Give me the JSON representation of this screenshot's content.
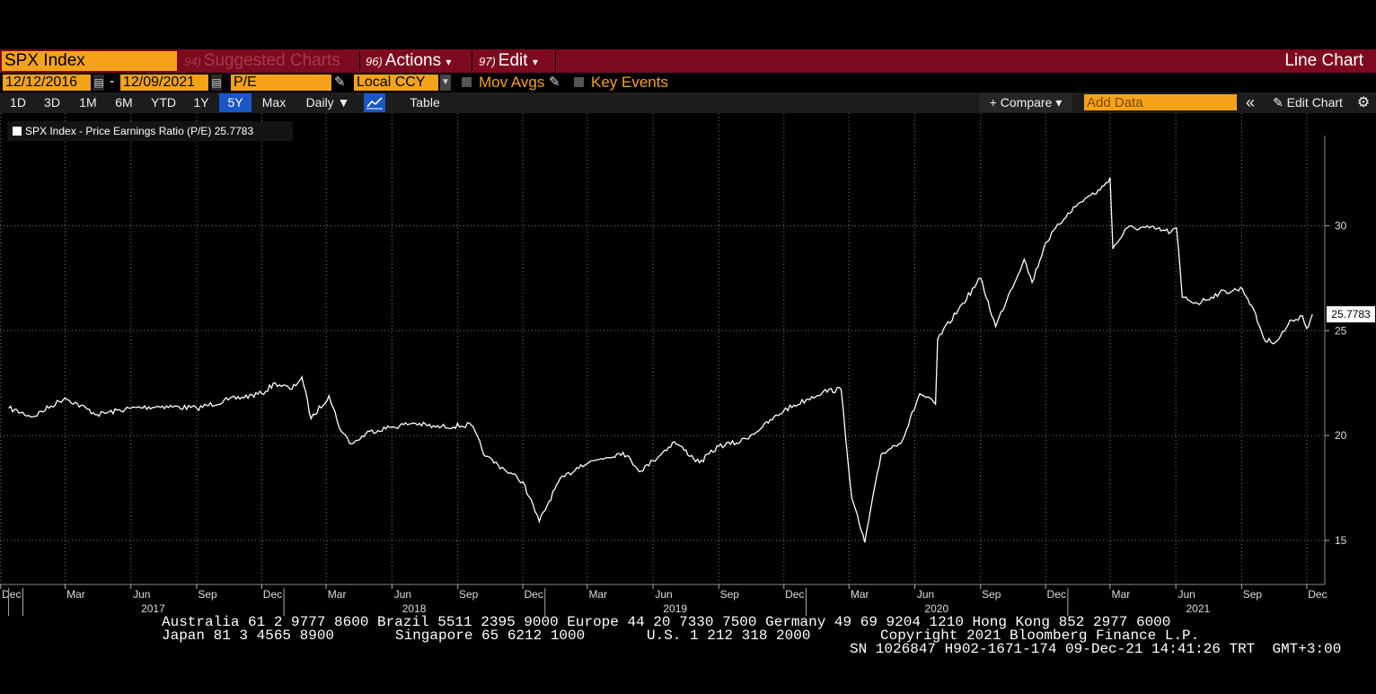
{
  "header": {
    "ticker": "SPX Index",
    "suggested_num": "94)",
    "suggested_label": "Suggested Charts",
    "actions_num": "96)",
    "actions_label": "Actions",
    "edit_num": "97)",
    "edit_label": "Edit",
    "caret": "▾",
    "chart_type": "Line Chart"
  },
  "controls": {
    "start_date": "12/12/2016",
    "end_date": "12/09/2021",
    "date_sep": "-",
    "field": "P/E",
    "currency": "Local CCY",
    "mov_avgs": "Mov Avgs",
    "key_events": "Key Events"
  },
  "toolbar": {
    "periods": [
      "1D",
      "3D",
      "1M",
      "6M",
      "YTD",
      "1Y",
      "5Y",
      "Max"
    ],
    "active_period": "5Y",
    "frequency": "Daily ▼",
    "table": "Table",
    "compare": "+ Compare ▾",
    "add_data_placeholder": "Add Data",
    "collapse": "«",
    "edit_chart": "✎ Edit Chart",
    "settings": "⚙"
  },
  "legend": {
    "label": "SPX Index - Price Earnings Ratio (P/E) 25.7783"
  },
  "chart_data": {
    "type": "line",
    "series": [
      {
        "x": [
          "2016-12-12",
          "2017-01-15",
          "2017-03-01",
          "2017-04-15",
          "2017-06-01",
          "2017-07-15",
          "2017-09-01",
          "2017-10-15",
          "2017-12-01",
          "2017-12-20",
          "2018-01-12",
          "2018-01-26",
          "2018-02-08",
          "2018-03-05",
          "2018-03-22",
          "2018-04-06",
          "2018-05-01",
          "2018-06-01",
          "2018-07-01",
          "2018-08-01",
          "2018-09-20",
          "2018-10-10",
          "2018-11-05",
          "2018-12-01",
          "2018-12-24",
          "2019-01-20",
          "2019-02-20",
          "2019-03-20",
          "2019-04-20",
          "2019-05-15",
          "2019-06-01",
          "2019-07-01",
          "2019-08-05",
          "2019-09-01",
          "2019-10-01",
          "2019-11-01",
          "2019-12-01",
          "2020-01-01",
          "2020-01-25",
          "2020-02-19",
          "2020-03-05",
          "2020-03-23",
          "2020-04-15",
          "2020-05-15",
          "2020-06-08",
          "2020-06-30",
          "2020-07-03",
          "2020-08-01",
          "2020-09-01",
          "2020-09-22",
          "2020-10-10",
          "2020-11-01",
          "2020-11-12",
          "2020-12-01",
          "2021-01-01",
          "2021-01-25",
          "2021-02-15",
          "2021-03-01",
          "2021-03-05",
          "2021-03-25",
          "2021-04-25",
          "2021-05-25",
          "2021-06-02",
          "2021-06-10",
          "2021-07-01",
          "2021-08-01",
          "2021-09-02",
          "2021-09-15",
          "2021-10-04",
          "2021-10-20",
          "2021-11-10",
          "2021-11-25",
          "2021-12-01",
          "2021-12-09"
        ],
        "values": [
          21.3,
          20.9,
          21.8,
          21.0,
          21.3,
          21.4,
          21.3,
          21.7,
          22.0,
          22.5,
          22.2,
          22.8,
          20.8,
          21.9,
          20.2,
          19.6,
          20.2,
          20.4,
          20.6,
          20.4,
          20.5,
          19.0,
          18.4,
          17.8,
          15.9,
          17.8,
          18.6,
          18.9,
          19.2,
          18.3,
          18.8,
          19.7,
          18.7,
          19.5,
          19.7,
          20.4,
          21.2,
          21.7,
          22.1,
          22.2,
          17.0,
          14.9,
          19.1,
          19.8,
          22.0,
          21.5,
          24.6,
          26.0,
          27.5,
          25.2,
          26.7,
          28.4,
          27.3,
          29.2,
          30.6,
          31.3,
          31.7,
          32.3,
          28.9,
          29.9,
          29.9,
          29.7,
          29.9,
          26.6,
          26.3,
          26.8,
          27.0,
          26.2,
          24.5,
          24.5,
          25.5,
          25.7,
          25.1,
          25.7783
        ]
      }
    ],
    "last_value_label": "25.7783",
    "y_ticks": [
      "15",
      "20",
      "25",
      "30"
    ],
    "ylim": [
      12.9,
      34.3
    ],
    "months": [
      "Dec",
      "Mar",
      "Jun",
      "Sep",
      "Dec",
      "Mar",
      "Jun",
      "Sep",
      "Dec",
      "Mar",
      "Jun",
      "Sep",
      "Dec",
      "Mar",
      "Jun",
      "Sep",
      "Dec",
      "Mar",
      "Jun",
      "Sep",
      "Dec"
    ],
    "years": [
      "2017",
      "2018",
      "2019",
      "2020",
      "2021"
    ],
    "grid": "dotted",
    "line_color": "#ffffff"
  },
  "footer": {
    "line1": "Australia 61 2 9777 8600 Brazil 5511 2395 9000 Europe 44 20 7330 7500 Germany 49 69 9204 1210 Hong Kong 852 2977 6000",
    "line2_a": "Japan 81 3 4565 8900",
    "line2_b": "Singapore 65 6212 1000",
    "line2_c": "U.S. 1 212 318 2000",
    "line2_d": "Copyright 2021 Bloomberg Finance L.P.",
    "line3": "SN 1026847 H902-1671-174 09-Dec-21 14:41:26 TRT  GMT+3:00"
  }
}
